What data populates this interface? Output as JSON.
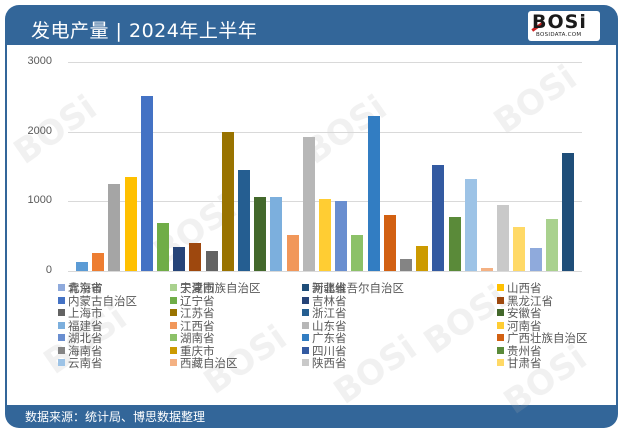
{
  "header": {
    "title": "发电产量 | 2024年上半年",
    "logo_text": "BOSi",
    "logo_sub": "BOSIDATA.COM"
  },
  "footer": {
    "source": "数据来源：统计局、博思数据整理"
  },
  "watermark": "BOSi",
  "chart_data": {
    "type": "bar",
    "title": "发电产量 | 2024年上半年",
    "xlabel": "",
    "ylabel": "",
    "ylim": [
      0,
      3000
    ],
    "yticks": [
      0,
      1000,
      2000,
      3000
    ],
    "grid": true,
    "legend_position": "bottom",
    "categories": [
      "北京市",
      "天津市",
      "河北省",
      "山西省",
      "内蒙古自治区",
      "辽宁省",
      "吉林省",
      "黑龙江省",
      "上海市",
      "江苏省",
      "浙江省",
      "安徽省",
      "福建省",
      "江西省",
      "山东省",
      "河南省",
      "湖北省",
      "湖南省",
      "广东省",
      "广西壮族自治区",
      "海南省",
      "重庆市",
      "四川省",
      "贵州省",
      "云南省",
      "西藏自治区",
      "陕西省",
      "甘肃省",
      "青海省",
      "宁夏回族自治区",
      "新疆维吾尔自治区"
    ],
    "values": [
      130,
      255,
      1250,
      1345,
      2515,
      690,
      345,
      400,
      290,
      1995,
      1450,
      1065,
      1065,
      520,
      1920,
      1030,
      1000,
      520,
      2225,
      805,
      175,
      355,
      1515,
      770,
      1315,
      45,
      945,
      630,
      335,
      745,
      1690
    ],
    "colors": [
      "#5b9bd5",
      "#ed7d31",
      "#a5a5a5",
      "#ffc000",
      "#4472c4",
      "#70ad47",
      "#264478",
      "#9e480e",
      "#636363",
      "#997300",
      "#255e91",
      "#43682b",
      "#7cafdd",
      "#f1975a",
      "#b7b7b7",
      "#ffcd33",
      "#698ed0",
      "#8cc168",
      "#327dc2",
      "#d26012",
      "#848484",
      "#cc9a00",
      "#335aa1",
      "#5a8a39",
      "#9dc3e6",
      "#f4b183",
      "#c9c9c9",
      "#ffd966",
      "#8faadc",
      "#a9d18e",
      "#1f4e79"
    ]
  },
  "legend": {
    "columns_order": "row-major-4"
  }
}
